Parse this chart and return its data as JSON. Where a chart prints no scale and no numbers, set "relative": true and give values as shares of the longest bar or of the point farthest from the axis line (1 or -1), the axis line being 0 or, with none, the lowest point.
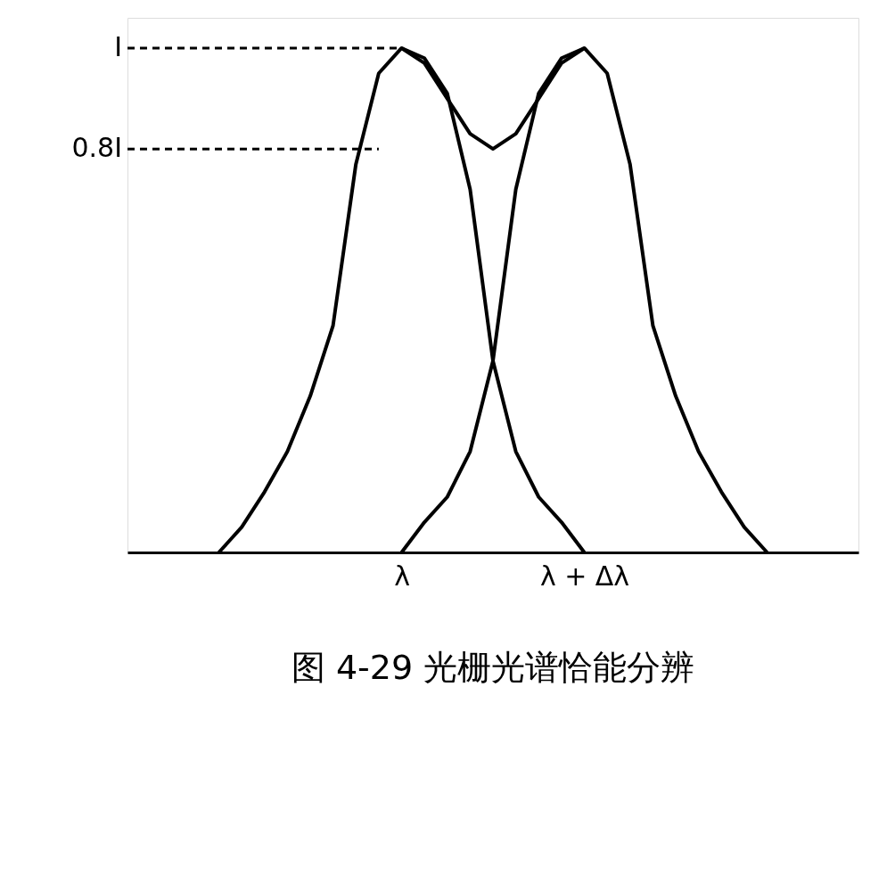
{
  "chart_data": {
    "type": "line",
    "title": "图 4-29  光栅光谱恰能分辨",
    "relative": true,
    "grid": false,
    "marker": "none",
    "line_style": "solid",
    "categories": [
      null,
      null,
      null,
      null,
      null,
      null,
      null,
      null,
      null,
      null,
      null,
      null,
      "λ",
      null,
      null,
      null,
      null,
      null,
      null,
      null,
      "λ + Δλ",
      null,
      null,
      null,
      null,
      null,
      null,
      null,
      null,
      null,
      null,
      null,
      null
    ],
    "series": [
      {
        "color": "#000000",
        "values": [
          null,
          null,
          null,
          null,
          0,
          0.05,
          0.12,
          0.2,
          0.31,
          0.45,
          0.77,
          0.95,
          1,
          0.98,
          0.91,
          0.72,
          0.38,
          0.2,
          0.11,
          0.06,
          0,
          null,
          null,
          null,
          null,
          null,
          null,
          null,
          null,
          null,
          null,
          null,
          null
        ]
      },
      {
        "color": "#000000",
        "values": [
          null,
          null,
          null,
          null,
          null,
          null,
          null,
          null,
          null,
          null,
          null,
          null,
          0,
          0.06,
          0.11,
          0.2,
          0.38,
          0.72,
          0.91,
          0.98,
          1,
          0.95,
          0.77,
          0.45,
          0.31,
          0.2,
          0.12,
          0.05,
          0,
          null,
          null,
          null,
          null
        ]
      },
      {
        "color": "#000000",
        "values": [
          null,
          null,
          null,
          null,
          null,
          null,
          null,
          null,
          null,
          null,
          null,
          null,
          1,
          0.97,
          0.9,
          0.83,
          0.8,
          0.83,
          0.9,
          0.97,
          1,
          null,
          null,
          null,
          null,
          null,
          null,
          null,
          null,
          null,
          null,
          null,
          null
        ]
      }
    ],
    "ref_lines": [
      {
        "axis": "y",
        "value": 1,
        "label": "I",
        "line_style": "dashed",
        "color": "#000000"
      },
      {
        "axis": "y",
        "value": 0.8,
        "label": "0.8I",
        "line_style": "dashed",
        "color": "#000000"
      }
    ]
  }
}
